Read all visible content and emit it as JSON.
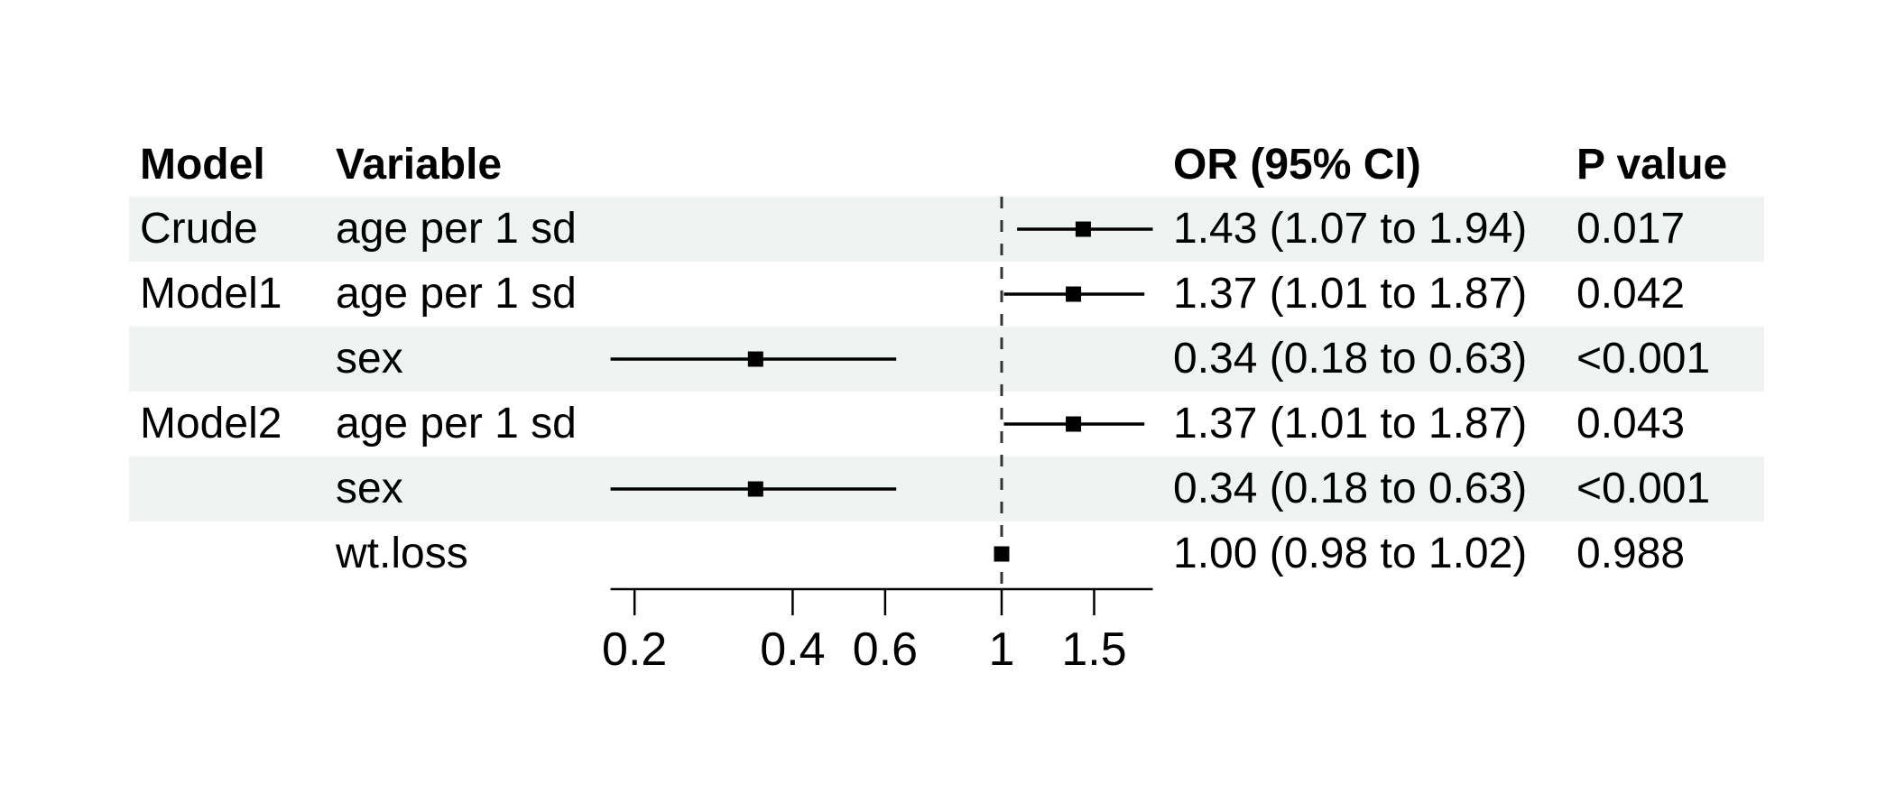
{
  "table": {
    "columns": [
      {
        "id": "model",
        "label": "Model"
      },
      {
        "id": "variable",
        "label": "Variable"
      },
      {
        "id": "or_ci",
        "label": "OR (95% CI)"
      },
      {
        "id": "p",
        "label": "P value"
      }
    ],
    "rows": [
      {
        "model": "Crude",
        "variable": "age per 1 sd",
        "or_ci": "1.43 (1.07 to 1.94)",
        "p": "0.017",
        "shaded": true
      },
      {
        "model": "Model1",
        "variable": "age per 1 sd",
        "or_ci": "1.37 (1.01 to 1.87)",
        "p": "0.042",
        "shaded": false
      },
      {
        "model": "",
        "variable": "sex",
        "or_ci": "0.34 (0.18 to 0.63)",
        "p": "<0.001",
        "shaded": true
      },
      {
        "model": "Model2",
        "variable": "age per 1 sd",
        "or_ci": "1.37 (1.01 to 1.87)",
        "p": "0.043",
        "shaded": false
      },
      {
        "model": "",
        "variable": "sex",
        "or_ci": "0.34 (0.18 to 0.63)",
        "p": "<0.001",
        "shaded": true
      },
      {
        "model": "",
        "variable": "wt.loss",
        "or_ci": "1.00 (0.98 to 1.02)",
        "p": "0.988",
        "shaded": false
      }
    ]
  },
  "chart_data": {
    "type": "forest",
    "x_scale": "log10",
    "reference_line": 1,
    "x_range": [
      0.18,
      1.94
    ],
    "x_ticks": [
      {
        "value": 0.2,
        "label": "0.2"
      },
      {
        "value": 0.4,
        "label": "0.4"
      },
      {
        "value": 0.6,
        "label": "0.6"
      },
      {
        "value": 1,
        "label": "1"
      },
      {
        "value": 1.5,
        "label": "1.5"
      }
    ],
    "series": [
      {
        "label": "Crude age per 1 sd",
        "or": 1.43,
        "lower": 1.07,
        "upper": 1.94
      },
      {
        "label": "Model1 age per 1 sd",
        "or": 1.37,
        "lower": 1.01,
        "upper": 1.87
      },
      {
        "label": "Model1 sex",
        "or": 0.34,
        "lower": 0.18,
        "upper": 0.63
      },
      {
        "label": "Model2 age per 1 sd",
        "or": 1.37,
        "lower": 1.01,
        "upper": 1.87
      },
      {
        "label": "Model2 sex",
        "or": 0.34,
        "lower": 0.18,
        "upper": 0.63
      },
      {
        "label": "Model2 wt.loss",
        "or": 1.0,
        "lower": 0.98,
        "upper": 1.02
      }
    ],
    "colors": {
      "marker": "#000000",
      "ci_line": "#000000",
      "reference_line": "#333333",
      "axis": "#000000",
      "band": "#eff3f2",
      "text": "#000000"
    }
  }
}
